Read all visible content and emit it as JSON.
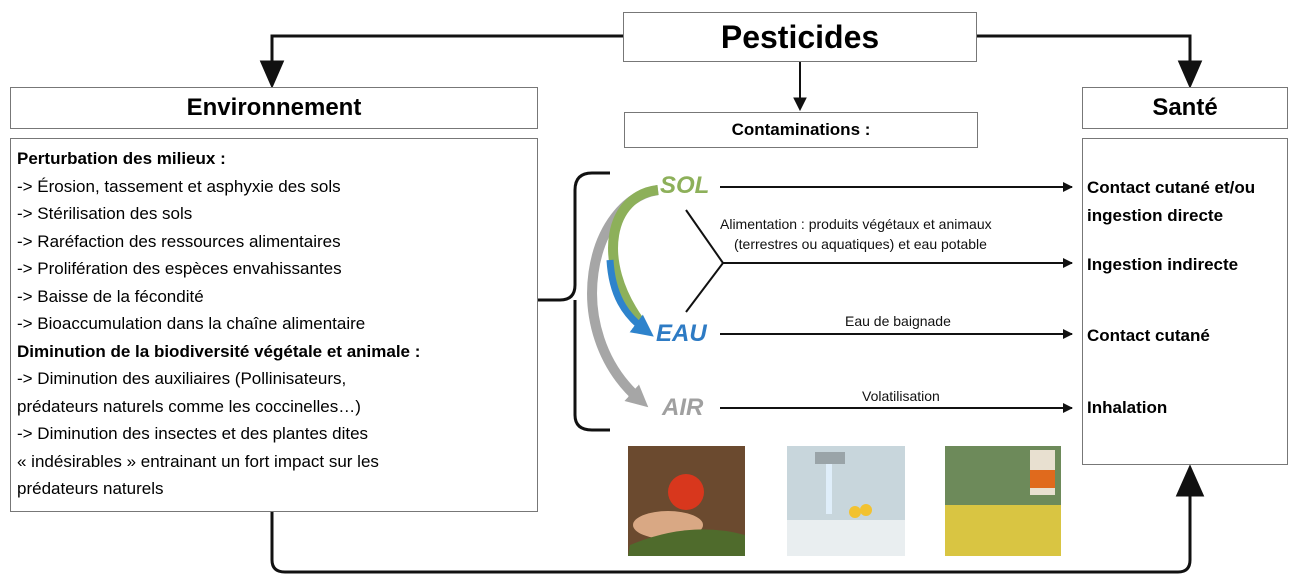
{
  "title": "Pesticides",
  "environment": {
    "title": "Environnement",
    "sections": [
      {
        "heading": "Perturbation des milieux :",
        "lines": [
          "-> Érosion, tassement et asphyxie des sols",
          "-> Stérilisation des sols",
          "-> Raréfaction des ressources alimentaires",
          "-> Prolifération des espèces envahissantes",
          "-> Baisse de la fécondité",
          "-> Bioaccumulation dans la chaîne alimentaire"
        ]
      },
      {
        "heading": "Diminution de la biodiversité végétale et animale :",
        "lines": [
          "-> Diminution des auxiliaires (Pollinisateurs,",
          "prédateurs naturels comme les coccinelles…)",
          "-> Diminution des insectes et des plantes dites",
          "« indésirables » entrainant un fort impact sur les",
          "prédateurs naturels"
        ]
      }
    ]
  },
  "contaminations": {
    "title": "Contaminations :",
    "media": [
      "SOL",
      "EAU",
      "AIR"
    ],
    "alimentation": [
      "Alimentation : produits végétaux et animaux",
      "(terrestres ou aquatiques)  et eau potable"
    ],
    "baignade": "Eau de baignade",
    "volatilisation": "Volatilisation"
  },
  "sante": {
    "title": "Santé",
    "effects": [
      [
        "Contact cutané et/ou",
        "ingestion directe"
      ],
      [
        "Ingestion indirecte"
      ],
      [
        "Contact cutané"
      ],
      [
        "Inhalation"
      ]
    ]
  }
}
